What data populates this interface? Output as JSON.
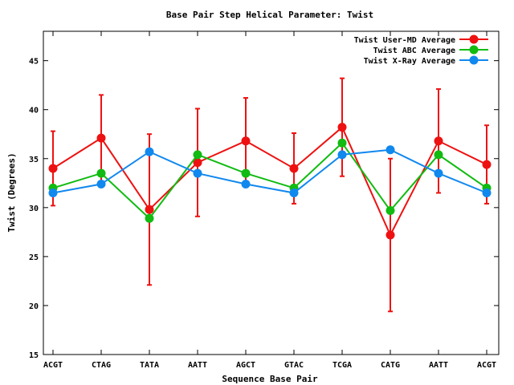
{
  "chart_data": {
    "type": "line",
    "title": "Base Pair Step Helical Parameter: Twist",
    "xlabel": "Sequence Base Pair",
    "ylabel": "Twist (Degrees)",
    "categories": [
      "ACGT",
      "CTAG",
      "TATA",
      "AATT",
      "AGCT",
      "GTAC",
      "TCGA",
      "CATG",
      "AATT",
      "ACGT"
    ],
    "ylim": [
      15,
      48
    ],
    "yticks": [
      15,
      20,
      25,
      30,
      35,
      40,
      45
    ],
    "grid": false,
    "legend_position": "top-right",
    "series": [
      {
        "name": "Twist User-MD Average",
        "color": "#ee1111",
        "values": [
          34.0,
          37.1,
          29.8,
          34.6,
          36.8,
          34.0,
          38.2,
          27.2,
          36.8,
          34.4
        ],
        "error": [
          3.8,
          4.4,
          7.7,
          5.5,
          4.4,
          3.6,
          5.0,
          7.8,
          5.3,
          4.0
        ]
      },
      {
        "name": "Twist ABC Average",
        "color": "#11bb11",
        "values": [
          32.0,
          33.5,
          28.9,
          35.4,
          33.5,
          32.0,
          36.6,
          29.7,
          35.4,
          32.0
        ]
      },
      {
        "name": "Twist X-Ray Average",
        "color": "#1188ee",
        "values": [
          31.5,
          32.4,
          35.7,
          33.5,
          32.4,
          31.5,
          35.4,
          35.9,
          33.5,
          31.5
        ]
      }
    ]
  }
}
